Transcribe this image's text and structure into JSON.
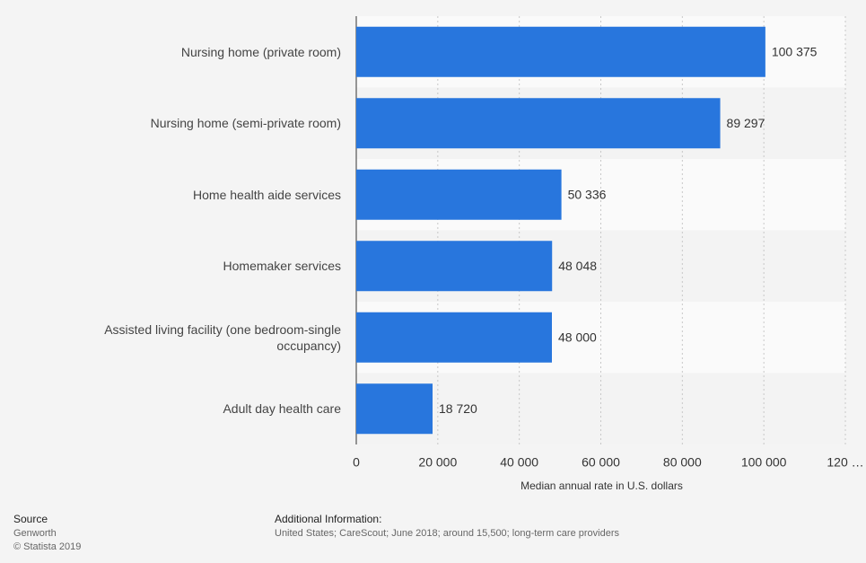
{
  "chart_data": {
    "type": "bar",
    "orientation": "horizontal",
    "categories": [
      "Nursing home (private room)",
      "Nursing home (semi-private room)",
      "Home health aide services",
      "Homemaker services",
      "Assisted living facility (one bedroom-single occupancy)",
      "Adult day health care"
    ],
    "values": [
      100375,
      89297,
      50336,
      48048,
      48000,
      18720
    ],
    "value_labels": [
      "100 375",
      "89 297",
      "50 336",
      "48 048",
      "48 000",
      "18 720"
    ],
    "color": "#2876dd",
    "xlabel": "Median annual rate in U.S. dollars",
    "xlim": [
      0,
      120000
    ],
    "xticks": [
      0,
      {
        "value": 20000,
        "label": "20 000"
      },
      {
        "value": 40000,
        "label": "40 000"
      },
      {
        "value": 60000,
        "label": "60 000"
      },
      {
        "value": 80000,
        "label": "80 000"
      },
      {
        "value": 100000,
        "label": "100 000"
      },
      {
        "value": 120000,
        "label": "120 …"
      }
    ],
    "grid": true
  },
  "footer": {
    "source_title": "Source",
    "source": "Genworth",
    "copyright": "© Statista 2019",
    "info_title": "Additional Information:",
    "info": "United States; CareScout; June 2018; around 15,500; long-term care providers"
  }
}
